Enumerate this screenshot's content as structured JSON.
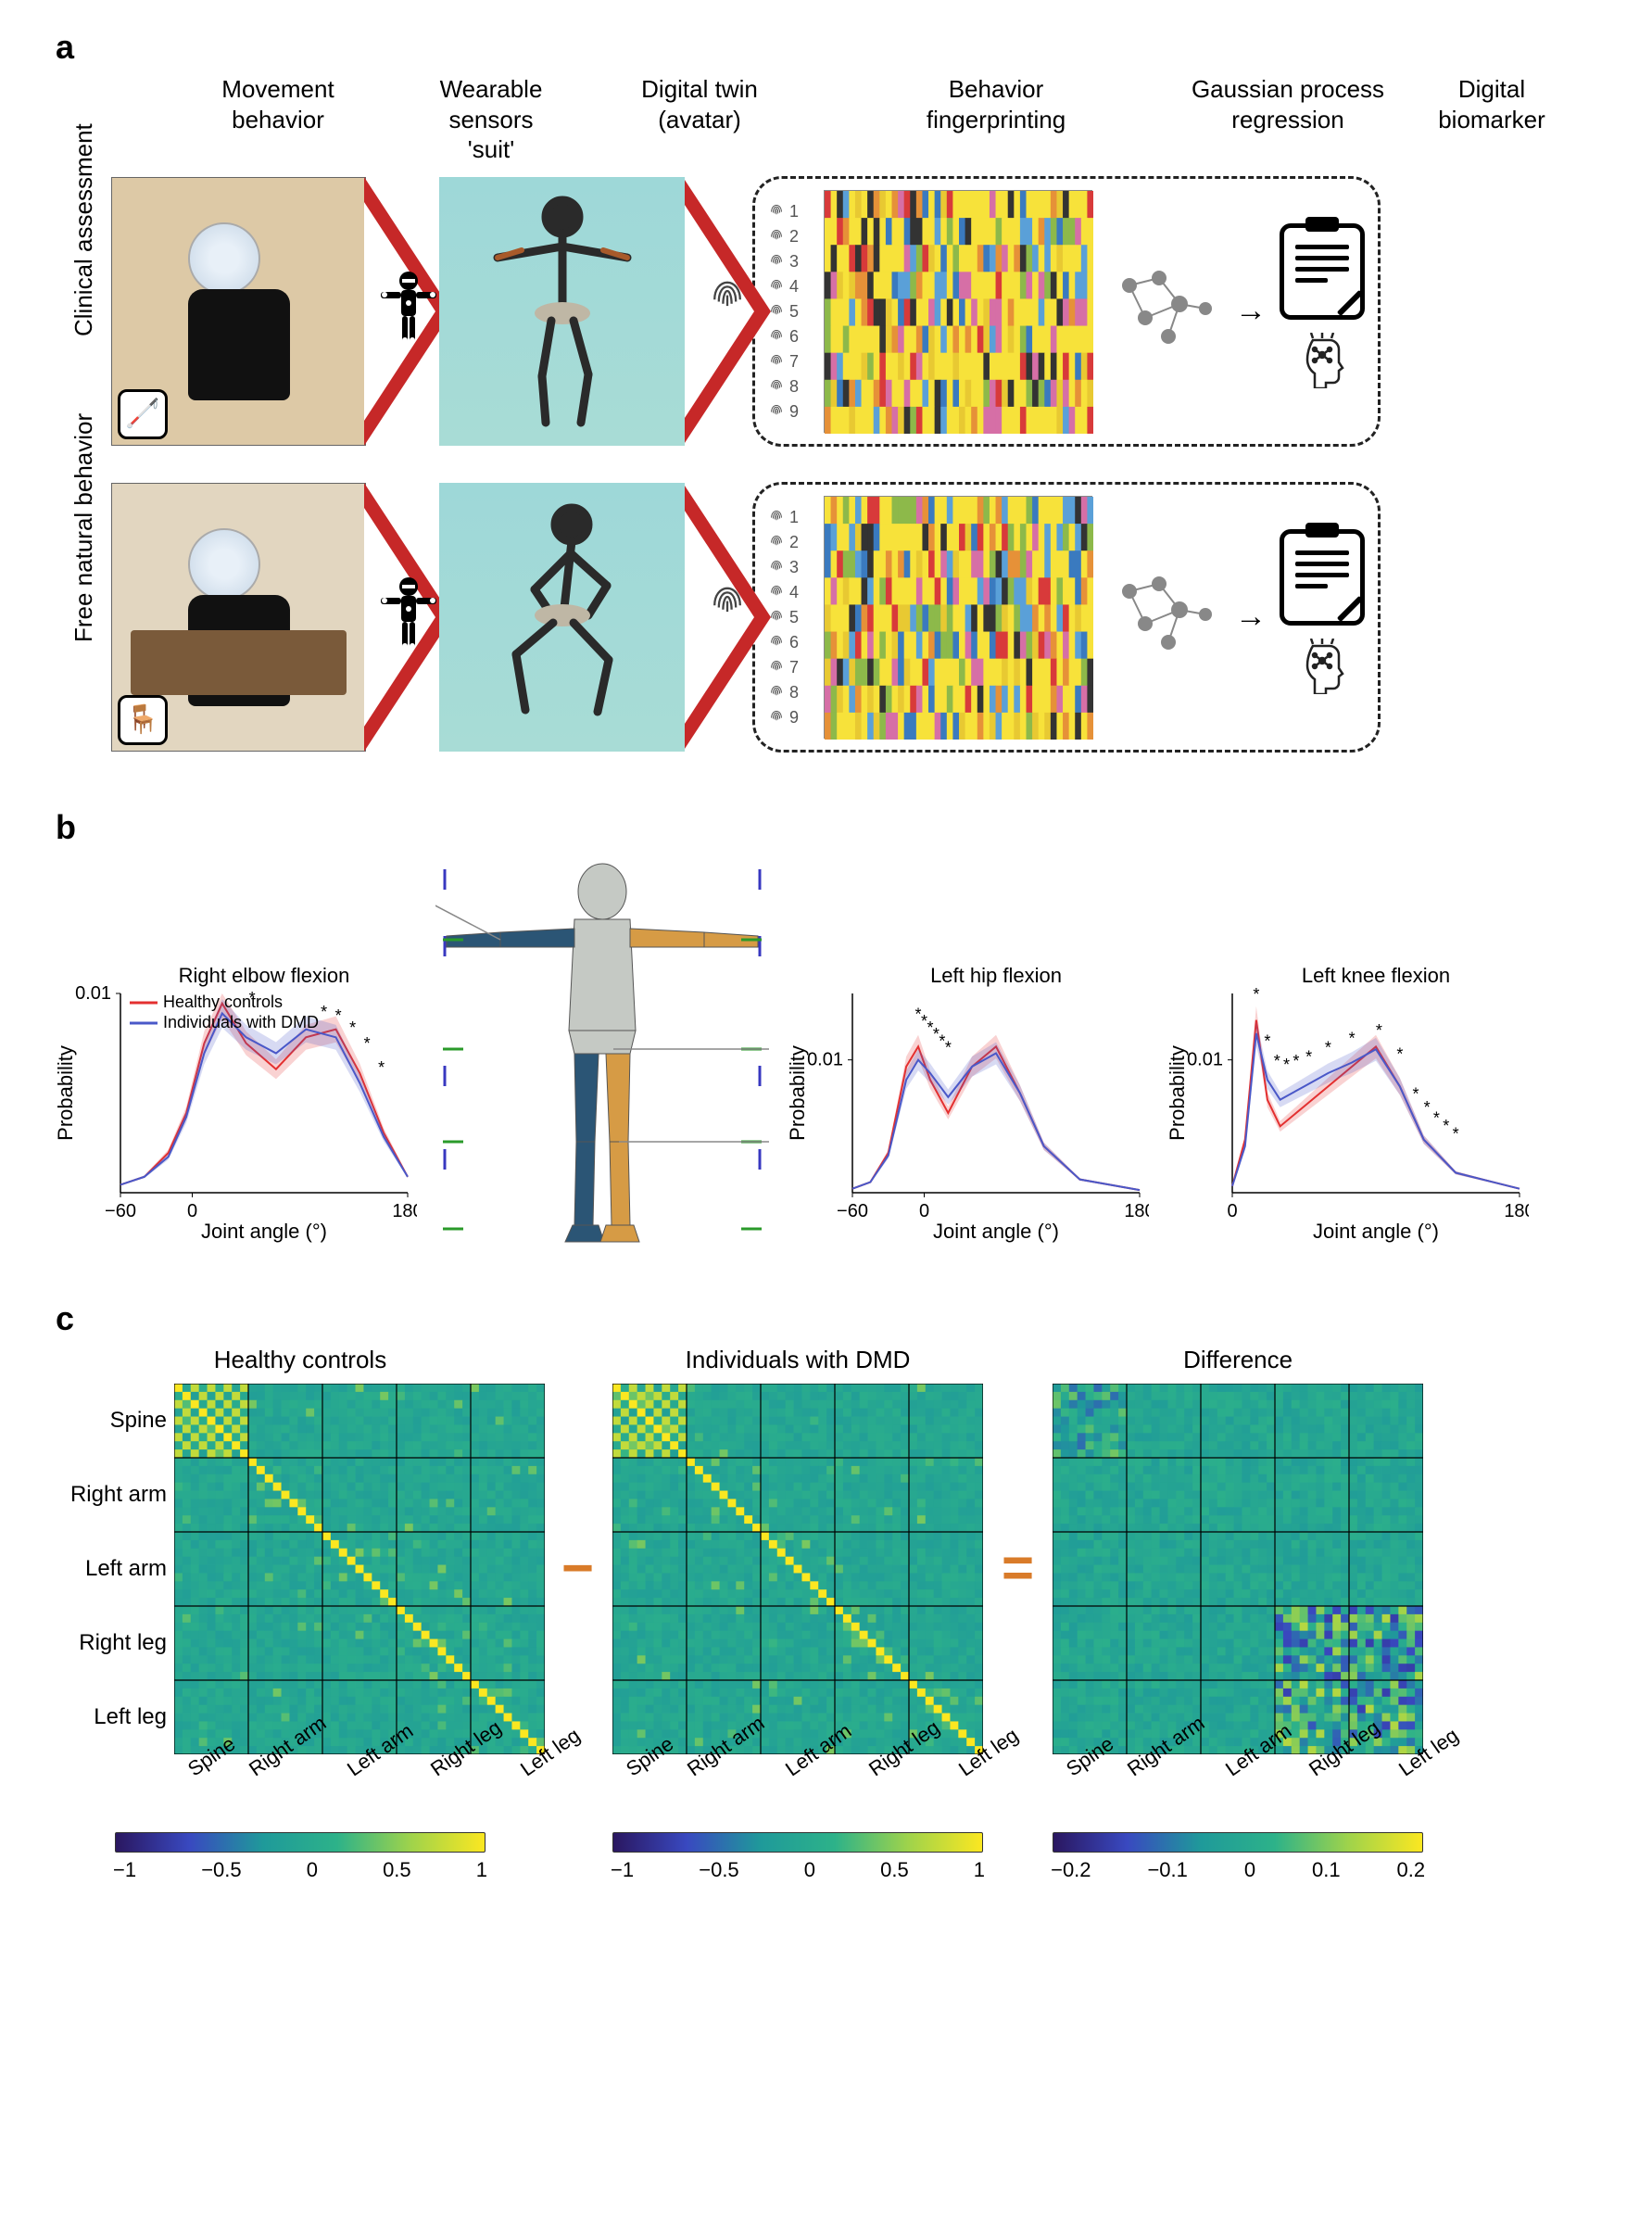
{
  "panelA": {
    "headers": [
      "Movement\nbehavior",
      "Wearable\nsensors\n'suit'",
      "Digital twin\n(avatar)",
      "Behavior\nfingerprinting",
      "Gaussian process\nregression",
      "Digital\nbiomarker"
    ],
    "header_widths": [
      280,
      180,
      270,
      370,
      260,
      180
    ],
    "rows": [
      {
        "label": "Clinical assessment",
        "photo_icon": "🦯",
        "photo_bg": "#ddc9a6"
      },
      {
        "label": "Free natural behavior",
        "photo_icon": "🪑",
        "photo_bg": "#e2d6c0"
      }
    ],
    "fingerprint_count": 9,
    "fingerprint_heatmap": {
      "cols": 44,
      "rows": 9,
      "palette": [
        "#f7e23a",
        "#e8c932",
        "#5aa0d8",
        "#3a7abf",
        "#d66fa6",
        "#e69138",
        "#d83a3a",
        "#333333",
        "#8db94a"
      ],
      "bg": "#f7e23a"
    }
  },
  "panelB": {
    "charts": [
      {
        "title": "Right elbow flexion",
        "xmin": -60,
        "xmax": 180,
        "ymax": 0.01,
        "xticks": [
          -60,
          0,
          180
        ],
        "series": {
          "hc": {
            "color": "#e33030",
            "points": [
              [
                -60,
                0.0004
              ],
              [
                -40,
                0.0008
              ],
              [
                -20,
                0.002
              ],
              [
                -5,
                0.004
              ],
              [
                10,
                0.0075
              ],
              [
                25,
                0.0095
              ],
              [
                45,
                0.0075
              ],
              [
                70,
                0.0062
              ],
              [
                95,
                0.0078
              ],
              [
                120,
                0.0082
              ],
              [
                140,
                0.006
              ],
              [
                160,
                0.003
              ],
              [
                180,
                0.0008
              ]
            ]
          },
          "dmd": {
            "color": "#4a58c8",
            "points": [
              [
                -60,
                0.0004
              ],
              [
                -40,
                0.0008
              ],
              [
                -20,
                0.0018
              ],
              [
                -5,
                0.0038
              ],
              [
                10,
                0.007
              ],
              [
                25,
                0.009
              ],
              [
                45,
                0.0078
              ],
              [
                70,
                0.007
              ],
              [
                95,
                0.0082
              ],
              [
                120,
                0.0078
              ],
              [
                140,
                0.0055
              ],
              [
                160,
                0.0028
              ],
              [
                180,
                0.0008
              ]
            ]
          }
        },
        "stars": [
          [
            50,
            0.0095
          ],
          [
            110,
            0.0088
          ],
          [
            122,
            0.0086
          ],
          [
            134,
            0.008
          ],
          [
            146,
            0.0072
          ],
          [
            158,
            0.006
          ]
        ]
      },
      {
        "title": "Left hip flexion",
        "xmin": -60,
        "xmax": 180,
        "ymax": 0.015,
        "xticks": [
          -60,
          0,
          180
        ],
        "series": {
          "hc": {
            "color": "#e33030",
            "points": [
              [
                -60,
                0.0003
              ],
              [
                -45,
                0.0008
              ],
              [
                -30,
                0.003
              ],
              [
                -15,
                0.0095
              ],
              [
                -5,
                0.011
              ],
              [
                5,
                0.0085
              ],
              [
                20,
                0.006
              ],
              [
                40,
                0.0095
              ],
              [
                60,
                0.011
              ],
              [
                80,
                0.0075
              ],
              [
                100,
                0.0035
              ],
              [
                130,
                0.001
              ],
              [
                180,
                0.0002
              ]
            ]
          },
          "dmd": {
            "color": "#4a58c8",
            "points": [
              [
                -60,
                0.0003
              ],
              [
                -45,
                0.0008
              ],
              [
                -30,
                0.0028
              ],
              [
                -15,
                0.0085
              ],
              [
                -5,
                0.01
              ],
              [
                5,
                0.009
              ],
              [
                20,
                0.0072
              ],
              [
                40,
                0.0095
              ],
              [
                60,
                0.0105
              ],
              [
                80,
                0.0075
              ],
              [
                100,
                0.0035
              ],
              [
                130,
                0.001
              ],
              [
                180,
                0.0002
              ]
            ]
          }
        },
        "stars": [
          [
            -5,
            0.013
          ],
          [
            0,
            0.0125
          ],
          [
            5,
            0.012
          ],
          [
            10,
            0.0115
          ],
          [
            15,
            0.011
          ],
          [
            20,
            0.0105
          ]
        ]
      },
      {
        "title": "Left knee flexion",
        "xmin": 0,
        "xmax": 180,
        "ymax": 0.015,
        "xticks": [
          0,
          180
        ],
        "series": {
          "hc": {
            "color": "#e33030",
            "points": [
              [
                0,
                0.0005
              ],
              [
                8,
                0.004
              ],
              [
                15,
                0.013
              ],
              [
                22,
                0.007
              ],
              [
                30,
                0.005
              ],
              [
                45,
                0.0065
              ],
              [
                60,
                0.008
              ],
              [
                75,
                0.0095
              ],
              [
                90,
                0.011
              ],
              [
                105,
                0.008
              ],
              [
                120,
                0.004
              ],
              [
                140,
                0.0015
              ],
              [
                180,
                0.0003
              ]
            ]
          },
          "dmd": {
            "color": "#4a58c8",
            "points": [
              [
                0,
                0.0005
              ],
              [
                8,
                0.0035
              ],
              [
                15,
                0.012
              ],
              [
                22,
                0.0085
              ],
              [
                30,
                0.007
              ],
              [
                45,
                0.008
              ],
              [
                60,
                0.009
              ],
              [
                75,
                0.0098
              ],
              [
                90,
                0.0108
              ],
              [
                105,
                0.008
              ],
              [
                120,
                0.004
              ],
              [
                140,
                0.0015
              ],
              [
                180,
                0.0003
              ]
            ]
          }
        },
        "stars": [
          [
            15,
            0.0145
          ],
          [
            22,
            0.011
          ],
          [
            28,
            0.0095
          ],
          [
            34,
            0.0092
          ],
          [
            40,
            0.0095
          ],
          [
            48,
            0.0098
          ],
          [
            60,
            0.0105
          ],
          [
            75,
            0.0112
          ],
          [
            92,
            0.0118
          ],
          [
            105,
            0.01
          ],
          [
            115,
            0.007
          ],
          [
            122,
            0.006
          ],
          [
            128,
            0.0052
          ],
          [
            134,
            0.0046
          ],
          [
            140,
            0.004
          ]
        ]
      }
    ],
    "legend": [
      {
        "label": "Healthy controls",
        "color": "#e33030"
      },
      {
        "label": "Individuals with DMD",
        "color": "#4a58c8"
      }
    ],
    "ylabel": "Probability",
    "xlabel": "Joint angle (°)",
    "ytick_label": "0.01",
    "avatar_limb_colors": {
      "right": "#2b5575",
      "left": "#d69b45",
      "torso": "#c5c9c4"
    }
  },
  "panelC": {
    "titles": [
      "Healthy controls",
      "Individuals with DMD",
      "Difference"
    ],
    "body_parts": [
      "Spine",
      "Right arm",
      "Left arm",
      "Right leg",
      "Left leg"
    ],
    "dim": 45,
    "group_size": 9,
    "colormap_main": {
      "min": -1,
      "max": 1,
      "stops": [
        "#2a1760",
        "#3949c0",
        "#1f9a9a",
        "#2db289",
        "#9fd34b",
        "#fbe721"
      ]
    },
    "colormap_diff": {
      "min": -0.2,
      "max": 0.2,
      "stops": [
        "#2a1760",
        "#3949c0",
        "#1f9a9a",
        "#2db289",
        "#9fd34b",
        "#fbe721"
      ]
    },
    "main_ticks": [
      "−1",
      "−0.5",
      "0",
      "0.5",
      "1"
    ],
    "diff_ticks": [
      "−0.2",
      "−0.1",
      "0",
      "0.1",
      "0.2"
    ]
  },
  "colors": {
    "chevron": "#c62828",
    "dashed": "#222222"
  }
}
